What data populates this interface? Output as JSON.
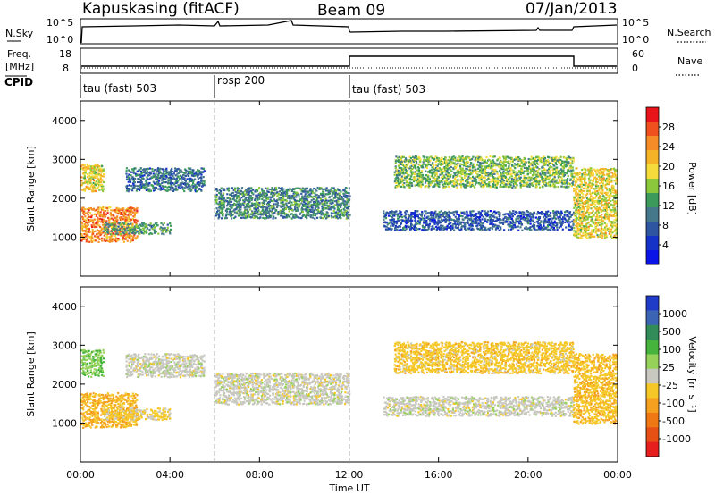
{
  "header": {
    "station": "Kapuskasing (fitACF)",
    "beam": "Beam 09",
    "date": "07/Jan/2013"
  },
  "noise_panel": {
    "left_label": "N.Sky",
    "right_label": "N.Search",
    "left_ticks": [
      "10^5",
      "10^0"
    ],
    "right_ticks": [
      "10^5",
      "10^0"
    ]
  },
  "freq_panel": {
    "left_label_line1": "Freq.",
    "left_label_line2": "[MHz]",
    "right_label": "Nave",
    "left_ticks": [
      "18",
      "8"
    ],
    "right_ticks": [
      "60",
      "0"
    ]
  },
  "cpid_panel": {
    "label": "CPID",
    "segments": [
      "tau (fast) 503",
      "rbsp 200",
      "tau (fast) 503"
    ]
  },
  "range_axis": {
    "ylabel": "Slant Range [km]",
    "ticks": [
      "4000",
      "3000",
      "2000",
      "1000"
    ]
  },
  "time_axis": {
    "xlabel": "Time UT",
    "ticks": [
      "00:00",
      "04:00",
      "08:00",
      "12:00",
      "16:00",
      "20:00",
      "00:00"
    ]
  },
  "power_colorbar": {
    "label": "Power [dB]",
    "ticks": [
      "28",
      "24",
      "20",
      "16",
      "12",
      "8",
      "4"
    ],
    "colors": [
      "#e8141a",
      "#f0501e",
      "#f58c28",
      "#f5b428",
      "#f5dc3c",
      "#8cc83c",
      "#3c9b5a",
      "#46788c",
      "#2d55a0",
      "#1432c8",
      "#0a14e6"
    ]
  },
  "velocity_colorbar": {
    "label": "Velocity [m s⁻¹]",
    "ticks": [
      "1000",
      "500",
      "100",
      "25",
      "-25",
      "-100",
      "-500",
      "-1000"
    ],
    "colors": [
      "#1e3cc8",
      "#3c64b4",
      "#328c5a",
      "#46b43c",
      "#96d25a",
      "#c8c8c0",
      "#f5c828",
      "#f5a01e",
      "#f07814",
      "#e65014",
      "#e61e1e"
    ]
  },
  "chart_data": {
    "type": "heatmap",
    "title": "Kapuskasing (fitACF) Beam 09 07/Jan/2013",
    "xlabel": "Time UT",
    "ylabel": "Slant Range [km]",
    "x_range_hours": [
      0,
      24
    ],
    "y_range_km": [
      0,
      4500
    ],
    "cpid_changes_hours": [
      6,
      12
    ],
    "frequency_mhz_by_segment": [
      {
        "start_hour": 0,
        "end_hour": 12,
        "freq_mhz": 10
      },
      {
        "start_hour": 12,
        "end_hour": 22,
        "freq_mhz": 15
      },
      {
        "start_hour": 22,
        "end_hour": 24,
        "freq_mhz": 10
      }
    ],
    "power_scale_db": [
      0,
      30
    ],
    "velocity_scale_ms": [
      -1000,
      1000
    ],
    "echo_regions": [
      {
        "start_hour": 0.0,
        "end_hour": 2.5,
        "range_km": [
          900,
          1800
        ],
        "power_db": 24,
        "velocity_ms": -300
      },
      {
        "start_hour": 0.0,
        "end_hour": 1.0,
        "range_km": [
          2200,
          2900
        ],
        "power_db": 18,
        "velocity_ms": 300
      },
      {
        "start_hour": 1.0,
        "end_hour": 4.0,
        "range_km": [
          1100,
          1400
        ],
        "power_db": 12,
        "velocity_ms": -150
      },
      {
        "start_hour": 2.0,
        "end_hour": 5.5,
        "range_km": [
          2200,
          2800
        ],
        "power_db": 8,
        "velocity_ms": 0
      },
      {
        "start_hour": 6.0,
        "end_hour": 12.0,
        "range_km": [
          1500,
          2300
        ],
        "power_db": 10,
        "velocity_ms": 0
      },
      {
        "start_hour": 13.5,
        "end_hour": 22.0,
        "range_km": [
          1200,
          1700
        ],
        "power_db": 6,
        "velocity_ms": 0
      },
      {
        "start_hour": 14.0,
        "end_hour": 22.0,
        "range_km": [
          2300,
          3100
        ],
        "power_db": 14,
        "velocity_ms": -200
      },
      {
        "start_hour": 22.0,
        "end_hour": 24.0,
        "range_km": [
          1000,
          2800
        ],
        "power_db": 18,
        "velocity_ms": -250
      }
    ]
  }
}
